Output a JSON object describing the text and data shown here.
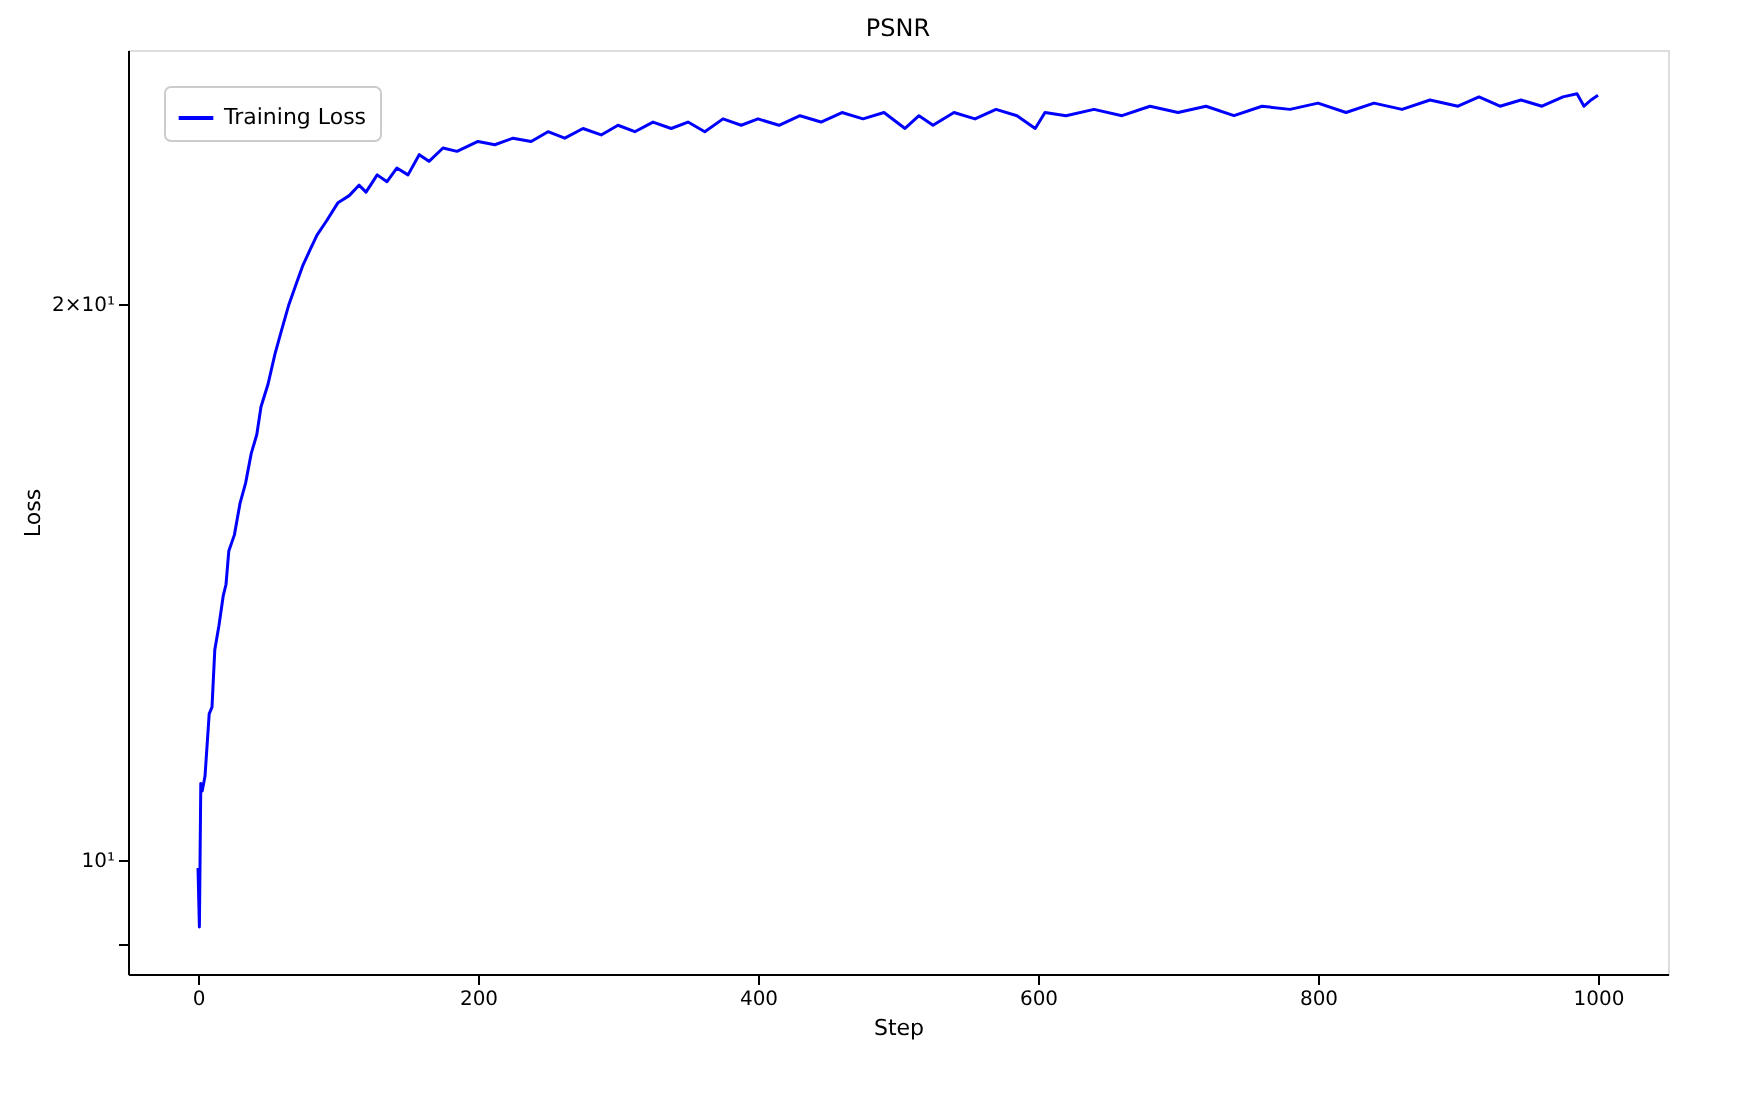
{
  "chart_data": {
    "type": "line",
    "title": "PSNR",
    "xlabel": "Step",
    "ylabel": "Loss",
    "x": [
      0,
      1,
      2,
      3,
      5,
      8,
      10,
      12,
      15,
      18,
      20,
      22,
      26,
      30,
      34,
      38,
      42,
      45,
      50,
      55,
      60,
      65,
      70,
      75,
      80,
      85,
      92,
      100,
      108,
      115,
      120,
      128,
      135,
      142,
      150,
      158,
      165,
      175,
      185,
      200,
      212,
      225,
      238,
      250,
      262,
      275,
      288,
      300,
      312,
      325,
      338,
      350,
      362,
      375,
      388,
      400,
      415,
      430,
      445,
      460,
      475,
      490,
      505,
      515,
      525,
      540,
      555,
      570,
      585,
      598,
      605,
      620,
      640,
      660,
      680,
      700,
      720,
      740,
      760,
      780,
      800,
      820,
      840,
      860,
      880,
      900,
      915,
      930,
      945,
      960,
      975,
      985,
      990,
      995,
      1000
    ],
    "series": [
      {
        "name": "Training Loss",
        "color": "#0000ff",
        "values": [
          9.9,
          9.2,
          11.0,
          10.9,
          11.1,
          12.0,
          12.1,
          13.0,
          13.4,
          13.9,
          14.1,
          14.7,
          15.0,
          15.6,
          16.0,
          16.6,
          17.0,
          17.6,
          18.1,
          18.8,
          19.4,
          20.0,
          20.5,
          21.0,
          21.4,
          21.8,
          22.2,
          22.7,
          22.9,
          23.2,
          23.0,
          23.5,
          23.3,
          23.7,
          23.5,
          24.1,
          23.9,
          24.3,
          24.2,
          24.5,
          24.4,
          24.6,
          24.5,
          24.8,
          24.6,
          24.9,
          24.7,
          25.0,
          24.8,
          25.1,
          24.9,
          25.1,
          24.8,
          25.2,
          25.0,
          25.2,
          25.0,
          25.3,
          25.1,
          25.4,
          25.2,
          25.4,
          24.9,
          25.3,
          25.0,
          25.4,
          25.2,
          25.5,
          25.3,
          24.9,
          25.4,
          25.3,
          25.5,
          25.3,
          25.6,
          25.4,
          25.6,
          25.3,
          25.6,
          25.5,
          25.7,
          25.4,
          25.7,
          25.5,
          25.8,
          25.6,
          25.9,
          25.6,
          25.8,
          25.6,
          25.9,
          26.0,
          25.6,
          25.8,
          25.95
        ]
      }
    ],
    "xlim": [
      -50,
      1050
    ],
    "xticks": [
      0,
      200,
      400,
      600,
      800,
      1000
    ],
    "log": "y",
    "ylim": [
      8.675,
      27.46
    ],
    "yticks": [
      {
        "value": 9,
        "label": null
      },
      {
        "value": 10,
        "label": "10¹"
      },
      {
        "value": 20,
        "label": "2×10¹"
      }
    ],
    "grid": false,
    "legend": "top left",
    "line_style": "solid",
    "marker": "none"
  }
}
